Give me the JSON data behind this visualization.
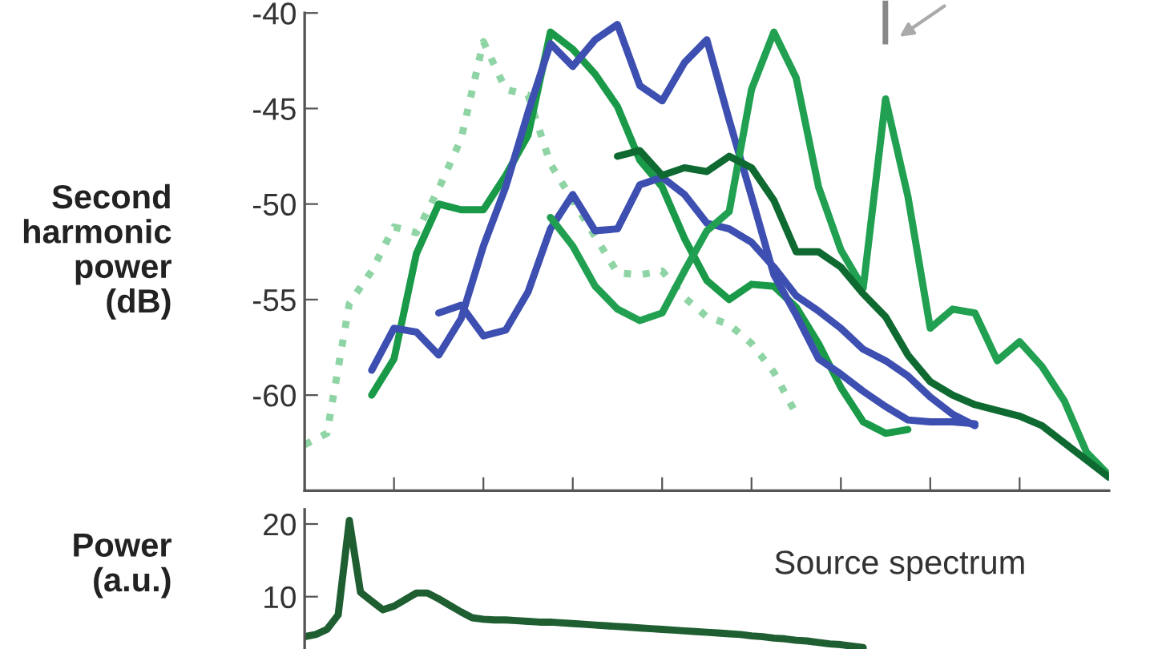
{
  "chart_data": [
    {
      "type": "line",
      "ylabel": "Second\nharmonic\npower\n(dB)",
      "tick_labels": "y",
      "grid": false,
      "legend": false,
      "categories": [
        null,
        null,
        null,
        null,
        null,
        null,
        null,
        null,
        null,
        null,
        null,
        null,
        null,
        null,
        null,
        null,
        null,
        null,
        null,
        null,
        null,
        null,
        null,
        null,
        null,
        null,
        null,
        null,
        null,
        null,
        null,
        null,
        null,
        null,
        null,
        null,
        null
      ],
      "ylim": [
        -65,
        -40
      ],
      "yticks": [
        -60,
        -55,
        -50,
        -45,
        -40
      ],
      "series": [
        {
          "color": "#8fd4a4",
          "line_style": "dotted",
          "values": [
            -62.6,
            -62.0,
            -55.2,
            -53.5,
            -51.2,
            -51.5,
            -49.2,
            -46.6,
            -41.5,
            -44.0,
            -44.3,
            -47.9,
            -49.8,
            -51.7,
            -53.6,
            -53.7,
            -53.5,
            -54.9,
            -55.9,
            -56.3,
            -57.3,
            -58.8,
            -61.0,
            null,
            null,
            null,
            null,
            null,
            null,
            null,
            null,
            null,
            null,
            null,
            null,
            null,
            null
          ]
        },
        {
          "color": "#1a9a48",
          "values": [
            null,
            null,
            null,
            -60.0,
            -58.1,
            -52.6,
            -50.0,
            -50.3,
            -50.3,
            -48.5,
            -46.4,
            -41.0,
            -41.9,
            -43.2,
            -44.9,
            -47.7,
            -49.1,
            -51.8,
            -54.0,
            -55.0,
            -54.2,
            -54.3,
            -55.4,
            -57.3,
            -59.6,
            -61.4,
            -62.0,
            -61.8,
            null,
            null,
            null,
            null,
            null,
            null,
            null,
            null,
            null
          ]
        },
        {
          "color": "#3d4fb0",
          "values": [
            null,
            null,
            null,
            -58.7,
            -56.5,
            -56.7,
            -57.9,
            -56.0,
            -52.2,
            -49.1,
            -45.2,
            -41.6,
            -42.8,
            -41.4,
            -40.6,
            -43.8,
            -44.6,
            -42.6,
            -41.4,
            -45.6,
            -49.6,
            -53.7,
            -55.8,
            -58.1,
            -58.9,
            -59.8,
            -60.6,
            -61.3,
            -61.4,
            -61.4,
            -61.5,
            null,
            null,
            null,
            null,
            null,
            null
          ]
        },
        {
          "color": "#3d4fb0",
          "values": [
            null,
            null,
            null,
            null,
            null,
            null,
            -55.7,
            -55.3,
            -56.9,
            -56.6,
            -54.6,
            -51.3,
            -49.5,
            -51.4,
            -51.3,
            -49.0,
            -48.6,
            -49.5,
            -51.0,
            -51.3,
            -52.0,
            -53.3,
            -54.8,
            -55.6,
            -56.5,
            -57.6,
            -58.2,
            -59.0,
            -60.1,
            -61.0,
            -61.6,
            null,
            null,
            null,
            null,
            null,
            null
          ]
        },
        {
          "color": "#20a050",
          "values": [
            null,
            null,
            null,
            null,
            null,
            null,
            null,
            null,
            null,
            null,
            null,
            -50.7,
            -52.2,
            -54.3,
            -55.5,
            -56.1,
            -55.7,
            -53.5,
            -51.4,
            -50.4,
            -44.0,
            -41.0,
            -43.4,
            -49.1,
            -52.4,
            -54.4,
            -44.5,
            -49.6,
            -56.5,
            -55.5,
            -55.7,
            -58.2,
            -57.2,
            -58.5,
            -60.3,
            -63.0,
            -64.2
          ]
        },
        {
          "color": "#0e6a30",
          "values": [
            null,
            null,
            null,
            null,
            null,
            null,
            null,
            null,
            null,
            null,
            null,
            null,
            null,
            null,
            -47.5,
            -47.2,
            -48.5,
            -48.1,
            -48.3,
            -47.5,
            -48.1,
            -49.8,
            -52.5,
            -52.5,
            -53.3,
            -54.7,
            -55.9,
            -57.9,
            -59.3,
            -60.0,
            -60.5,
            -60.8,
            -61.1,
            -61.6,
            -62.5,
            -63.4,
            -64.3
          ]
        }
      ]
    },
    {
      "type": "line",
      "ylabel": "Power\n(a.u.)",
      "tick_labels": "y",
      "grid": false,
      "legend": false,
      "annotations": [
        "Source spectrum"
      ],
      "categories": [
        null,
        null,
        null,
        null,
        null,
        null,
        null,
        null,
        null,
        null,
        null,
        null,
        null,
        null,
        null,
        null,
        null,
        null,
        null,
        null,
        null,
        null,
        null,
        null,
        null,
        null,
        null,
        null,
        null,
        null,
        null,
        null,
        null,
        null,
        null,
        null,
        null,
        null,
        null,
        null,
        null,
        null,
        null,
        null,
        null,
        null,
        null,
        null,
        null,
        null,
        null,
        null,
        null,
        null,
        null,
        null,
        null,
        null,
        null,
        null,
        null,
        null,
        null,
        null,
        null,
        null,
        null,
        null,
        null,
        null,
        null,
        null,
        null
      ],
      "ylim": [
        2.8,
        22
      ],
      "yticks": [
        10,
        20
      ],
      "series": [
        {
          "color": "#1e5e30",
          "values": [
            4.5,
            4.8,
            5.5,
            7.5,
            20.5,
            10.6,
            9.4,
            8.2,
            8.7,
            9.6,
            10.5,
            10.5,
            9.7,
            8.8,
            7.9,
            7.1,
            6.9,
            6.8,
            6.8,
            6.7,
            6.6,
            6.5,
            6.5,
            6.4,
            6.3,
            6.2,
            6.1,
            6.0,
            5.9,
            5.8,
            5.7,
            5.6,
            5.5,
            5.4,
            5.3,
            5.2,
            5.1,
            5.0,
            4.9,
            4.8,
            4.6,
            4.5,
            4.3,
            4.2,
            4.0,
            3.9,
            3.7,
            3.5,
            3.4,
            3.2,
            3.0,
            null,
            null,
            null,
            null,
            null,
            null,
            null,
            null,
            null,
            null,
            null,
            null,
            null,
            null,
            null,
            null,
            null,
            null,
            null,
            null,
            null,
            null
          ]
        }
      ]
    }
  ]
}
